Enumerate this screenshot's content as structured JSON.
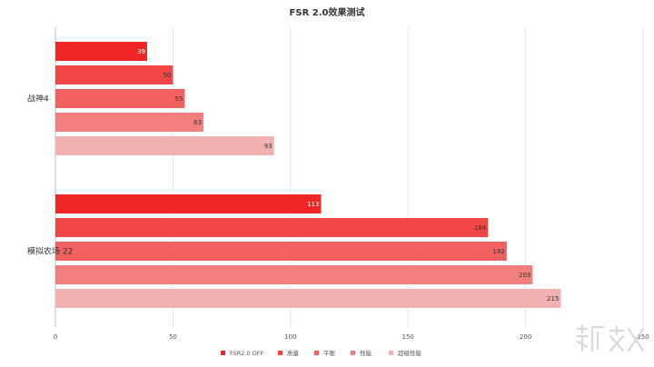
{
  "chart_data": {
    "type": "bar",
    "orientation": "horizontal",
    "title": "FSR 2.0效果测试",
    "xlabel": "",
    "ylabel": "",
    "categories": [
      "战神4",
      "模拟农场 22"
    ],
    "series": [
      {
        "name": "FSR2.0 OFF",
        "color": "#f02626",
        "values": [
          39,
          113
        ]
      },
      {
        "name": "质量",
        "color": "#f24646",
        "values": [
          50,
          184
        ]
      },
      {
        "name": "平衡",
        "color": "#f26060",
        "values": [
          55,
          192
        ]
      },
      {
        "name": "性能",
        "color": "#f27e7e",
        "values": [
          63,
          203
        ]
      },
      {
        "name": "超级性能",
        "color": "#f2b2b2",
        "values": [
          93,
          215
        ]
      }
    ],
    "xlim": [
      0,
      250
    ],
    "xticks": [
      0,
      50,
      100,
      150,
      200,
      250
    ],
    "grid": true,
    "legend_position": "bottom"
  },
  "watermark": "新浪众测"
}
